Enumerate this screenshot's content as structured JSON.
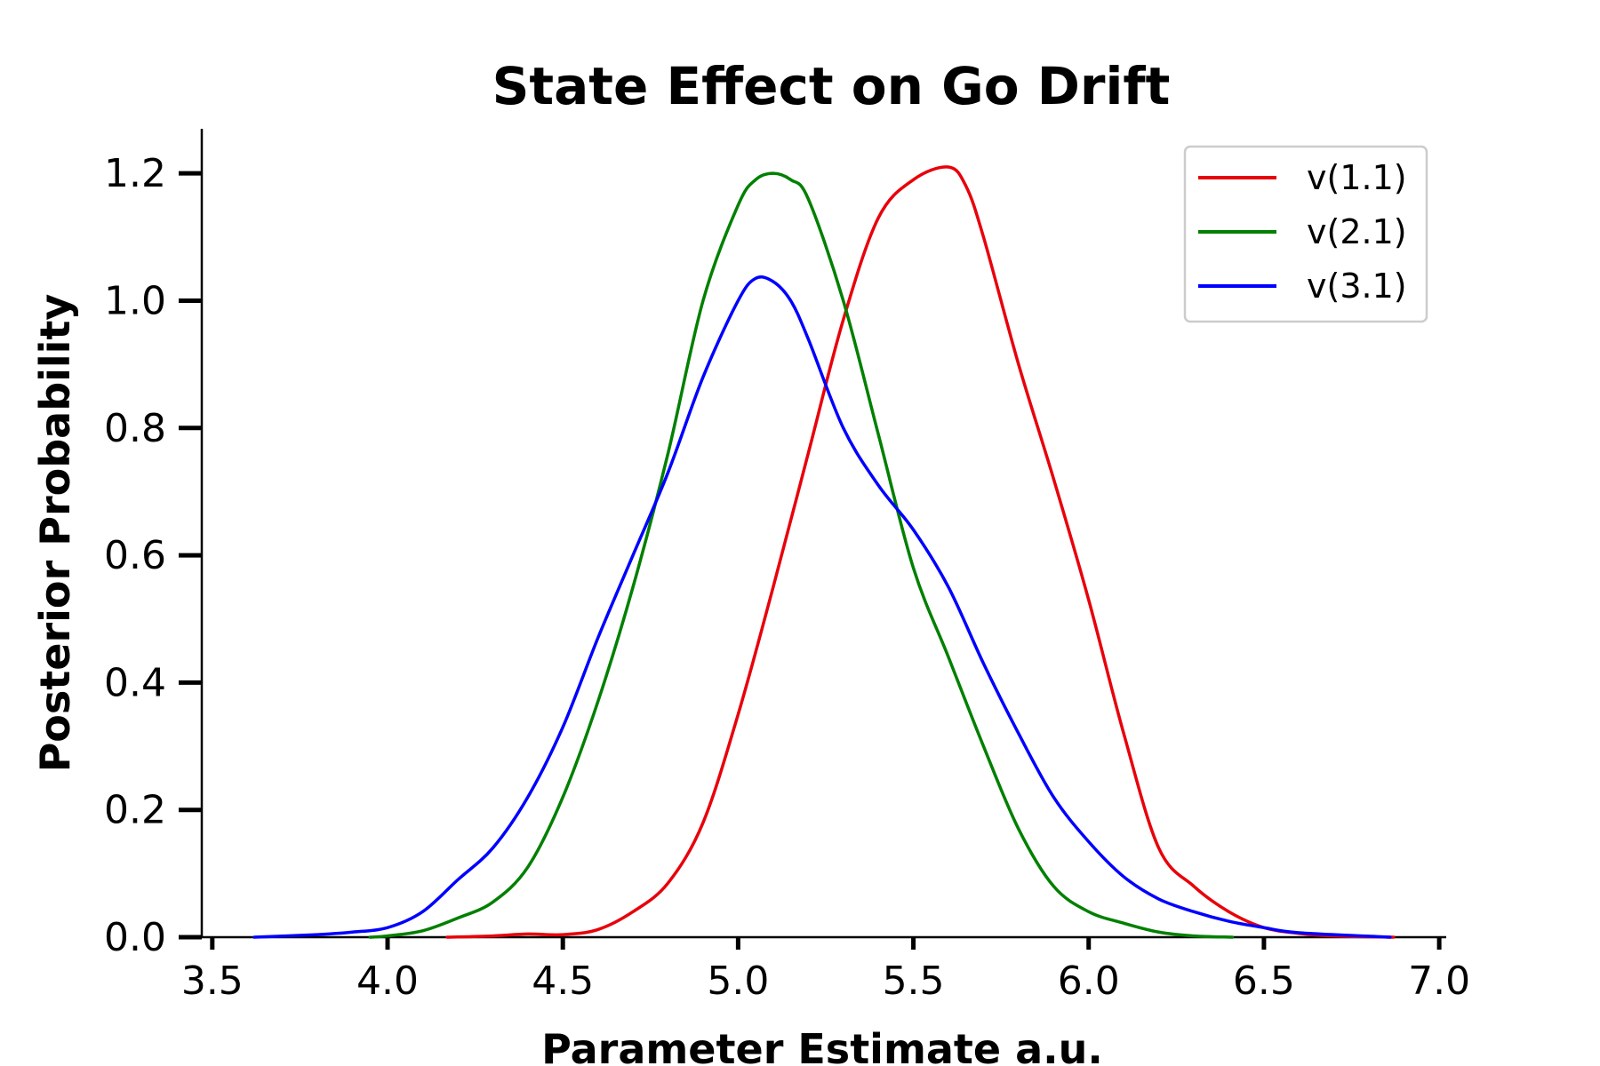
{
  "chart_data": {
    "type": "line",
    "title": "State Effect on Go Drift",
    "xlabel": "Parameter Estimate a.u.",
    "ylabel": "Posterior Probability",
    "xlim": [
      3.47,
      7.02
    ],
    "ylim": [
      0,
      1.27
    ],
    "xticks": [
      "3.5",
      "4.0",
      "4.5",
      "5.0",
      "5.5",
      "6.0",
      "6.5",
      "7.0"
    ],
    "yticks": [
      "0.0",
      "0.2",
      "0.4",
      "0.6",
      "0.8",
      "1.0",
      "1.2"
    ],
    "grid": false,
    "legend_position": "top-right",
    "series": [
      {
        "name": "v(1.1)",
        "color": "#e8000b",
        "x": [
          4.17,
          4.3,
          4.4,
          4.5,
          4.6,
          4.7,
          4.8,
          4.9,
          5.0,
          5.1,
          5.2,
          5.3,
          5.4,
          5.5,
          5.6,
          5.65,
          5.7,
          5.8,
          5.9,
          6.0,
          6.1,
          6.2,
          6.3,
          6.4,
          6.5,
          6.6,
          6.7,
          6.87
        ],
        "y": [
          0.0,
          0.002,
          0.005,
          0.004,
          0.012,
          0.04,
          0.085,
          0.18,
          0.35,
          0.55,
          0.76,
          0.97,
          1.13,
          1.19,
          1.21,
          1.18,
          1.1,
          0.9,
          0.72,
          0.53,
          0.32,
          0.14,
          0.08,
          0.04,
          0.015,
          0.006,
          0.002,
          0.0
        ]
      },
      {
        "name": "v(2.1)",
        "color": "#008000",
        "x": [
          3.95,
          4.0,
          4.1,
          4.2,
          4.3,
          4.4,
          4.5,
          4.6,
          4.7,
          4.8,
          4.9,
          5.0,
          5.05,
          5.1,
          5.15,
          5.2,
          5.3,
          5.4,
          5.5,
          5.6,
          5.7,
          5.8,
          5.9,
          6.0,
          6.1,
          6.2,
          6.3,
          6.41
        ],
        "y": [
          0.0,
          0.002,
          0.01,
          0.03,
          0.055,
          0.11,
          0.22,
          0.37,
          0.55,
          0.76,
          1.0,
          1.15,
          1.19,
          1.2,
          1.19,
          1.16,
          1.0,
          0.79,
          0.58,
          0.44,
          0.3,
          0.17,
          0.08,
          0.04,
          0.022,
          0.008,
          0.002,
          0.0
        ]
      },
      {
        "name": "v(3.1)",
        "color": "#0000ff",
        "x": [
          3.62,
          3.8,
          3.9,
          4.0,
          4.1,
          4.2,
          4.3,
          4.4,
          4.5,
          4.6,
          4.7,
          4.8,
          4.9,
          5.0,
          5.05,
          5.1,
          5.15,
          5.2,
          5.3,
          5.4,
          5.5,
          5.6,
          5.7,
          5.8,
          5.9,
          6.0,
          6.1,
          6.2,
          6.3,
          6.4,
          6.5,
          6.6,
          6.86
        ],
        "y": [
          0.0,
          0.004,
          0.008,
          0.015,
          0.04,
          0.09,
          0.14,
          0.22,
          0.33,
          0.47,
          0.6,
          0.73,
          0.88,
          1.0,
          1.035,
          1.03,
          1.0,
          0.94,
          0.8,
          0.71,
          0.64,
          0.55,
          0.43,
          0.32,
          0.22,
          0.15,
          0.095,
          0.06,
          0.04,
          0.025,
          0.015,
          0.007,
          0.0
        ]
      }
    ]
  }
}
